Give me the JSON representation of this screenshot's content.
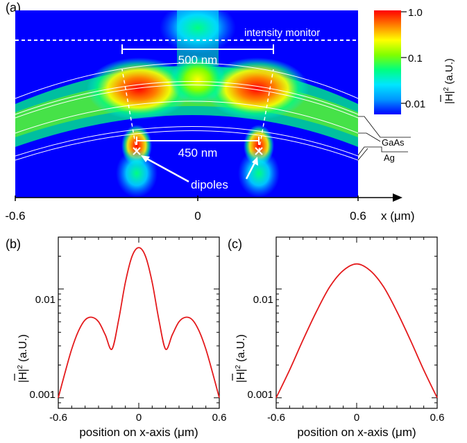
{
  "panel_labels": {
    "a": "(a)",
    "b": "(b)",
    "c": "(c)"
  },
  "panel_a": {
    "annotations": {
      "intensity_monitor": "intensity monitor",
      "width_500": "500 nm",
      "width_450": "450 nm",
      "dipoles": "dipoles",
      "layer_gaas": "GaAs",
      "layer_ag": "Ag"
    },
    "x_axis": {
      "label": "x (μm)",
      "ticks": [
        "-0.6",
        "0",
        "0.6"
      ]
    },
    "colorbar": {
      "label_main": "|H|",
      "label_sup": "2",
      "label_unit": " (a.U.)",
      "ticks": [
        "1.0",
        "0.1",
        "0.01"
      ],
      "colors": [
        "#0000ff",
        "#0096ff",
        "#00e6ff",
        "#00ff80",
        "#80ff00",
        "#ffff00",
        "#ff8000",
        "#ff0000"
      ]
    }
  },
  "panel_b": {
    "xlabel": "position on x-axis (μm)",
    "ylabel_main": "|H|",
    "ylabel_sup": "2",
    "ylabel_unit": " (a.U.)",
    "x_ticks": [
      "-0.6",
      "0",
      "0.6"
    ],
    "y_ticks": [
      "0.01",
      "0.001"
    ]
  },
  "panel_c": {
    "xlabel": "position on x-axis (μm)",
    "ylabel_main": "|H|",
    "ylabel_sup": "2",
    "ylabel_unit": " (a.U.)",
    "x_ticks": [
      "-0.6",
      "0",
      "0.6"
    ],
    "y_ticks": [
      "0.01",
      "0.001"
    ]
  },
  "chart_data": [
    {
      "type": "heatmap",
      "panel": "a",
      "xlabel": "x (μm)",
      "xlim": [
        -0.6,
        0.6
      ],
      "x_ticks": [
        -0.6,
        0,
        0.6
      ],
      "colorbar": {
        "label": "|H|^2 (a.U.)",
        "scale": "log",
        "range": [
          0.01,
          1.0
        ],
        "ticks": [
          0.01,
          0.1,
          1.0
        ]
      },
      "annotations": [
        "intensity monitor",
        "500 nm",
        "450 nm",
        "dipoles",
        "GaAs",
        "Ag"
      ]
    },
    {
      "type": "line",
      "panel": "b",
      "xlabel": "position on x-axis (μm)",
      "ylabel": "|H|^2 (a.U.)",
      "xlim": [
        -0.6,
        0.6
      ],
      "ylim": [
        0.0008,
        0.03
      ],
      "yscale": "log",
      "series": [
        {
          "color": "#e41a1c",
          "x": [
            -0.6,
            -0.55,
            -0.5,
            -0.45,
            -0.4,
            -0.35,
            -0.3,
            -0.25,
            -0.2,
            -0.15,
            -0.1,
            -0.05,
            0,
            0.05,
            0.1,
            0.15,
            0.2,
            0.25,
            0.3,
            0.35,
            0.4,
            0.45,
            0.5,
            0.55,
            0.6
          ],
          "y": [
            0.001,
            0.0017,
            0.0028,
            0.0041,
            0.0052,
            0.0055,
            0.005,
            0.0038,
            0.0028,
            0.0052,
            0.0115,
            0.02,
            0.024,
            0.02,
            0.0115,
            0.0052,
            0.0028,
            0.0038,
            0.005,
            0.0055,
            0.0052,
            0.0041,
            0.0028,
            0.0017,
            0.001
          ]
        }
      ]
    },
    {
      "type": "line",
      "panel": "c",
      "xlabel": "position on x-axis (μm)",
      "ylabel": "|H|^2 (a.U.)",
      "xlim": [
        -0.6,
        0.6
      ],
      "ylim": [
        0.0008,
        0.03
      ],
      "yscale": "log",
      "series": [
        {
          "color": "#e41a1c",
          "x": [
            -0.6,
            -0.5,
            -0.4,
            -0.3,
            -0.2,
            -0.1,
            0,
            0.1,
            0.2,
            0.3,
            0.4,
            0.5,
            0.6
          ],
          "y": [
            0.001,
            0.0018,
            0.0034,
            0.0062,
            0.0105,
            0.0148,
            0.017,
            0.0148,
            0.0105,
            0.0062,
            0.0034,
            0.0018,
            0.001
          ]
        }
      ]
    }
  ]
}
